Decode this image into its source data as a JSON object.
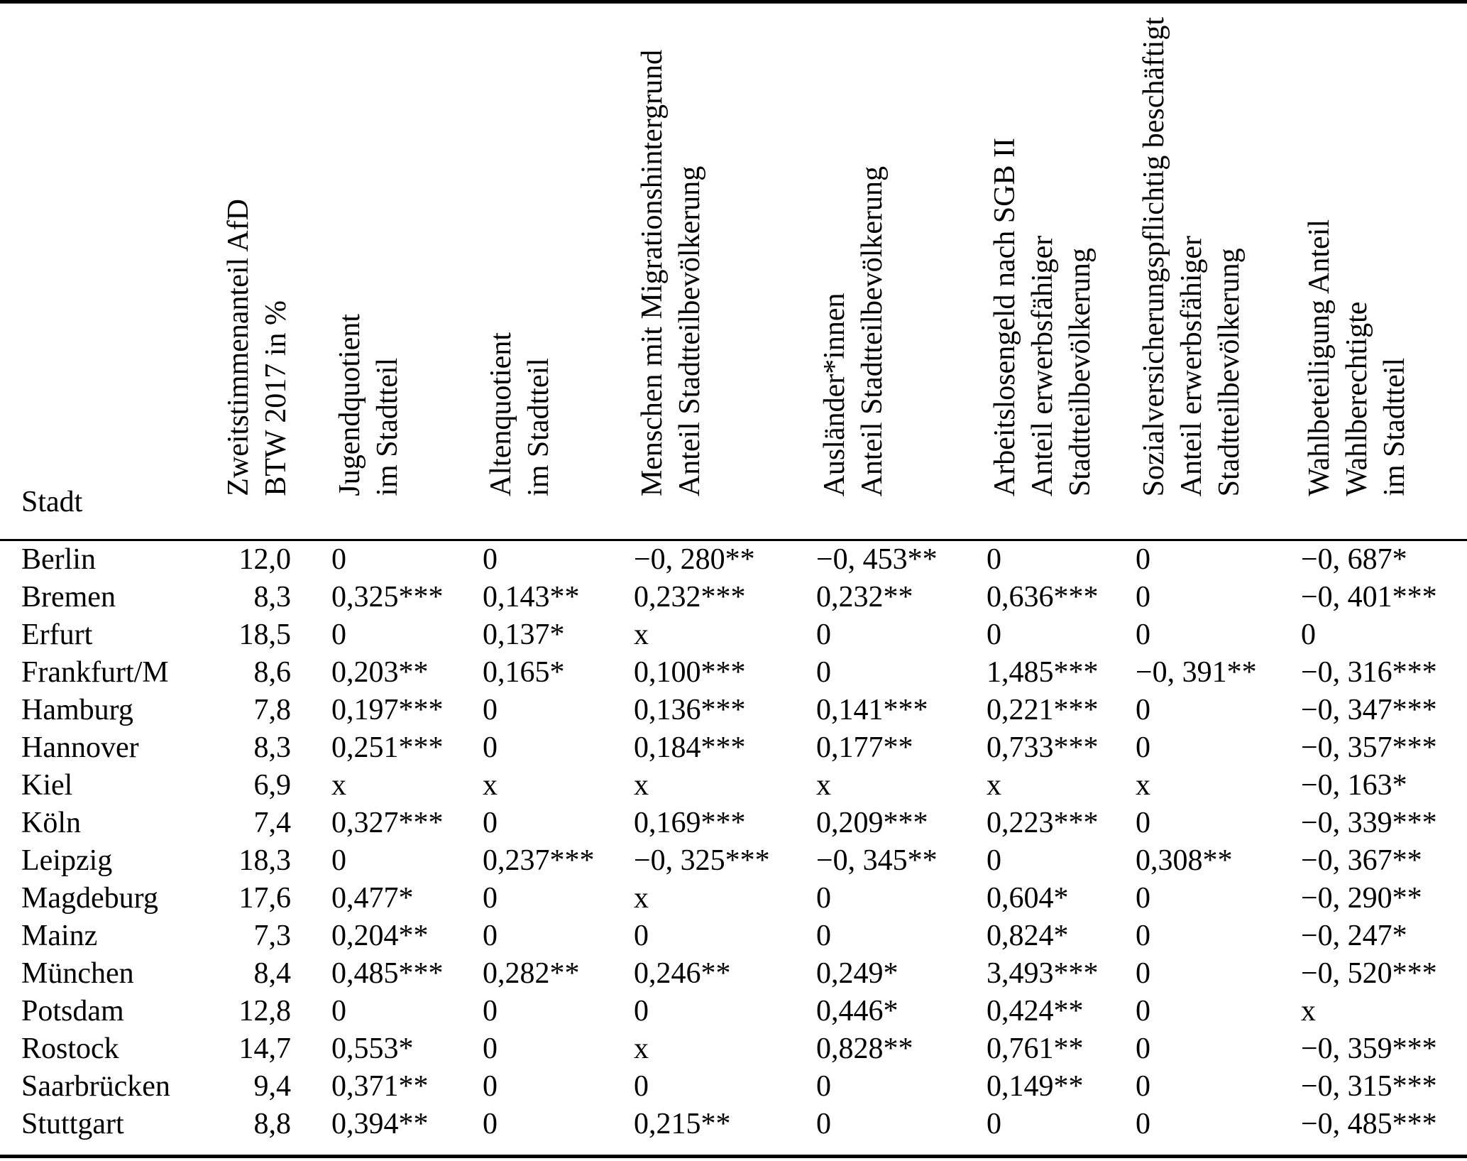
{
  "table": {
    "column_keys": [
      "stadt",
      "afd_zweitstimmen",
      "jugendquotient",
      "altenquotient",
      "migrationshintergrund",
      "auslaender",
      "sgb2",
      "sozialversicherung",
      "wahlbeteiligung"
    ],
    "columns": [
      {
        "label": "Stadt"
      },
      {
        "label": "Zweitstimmenanteil AfD\nBTW 2017 in %"
      },
      {
        "label": "Jugendquotient\nim Stadtteil"
      },
      {
        "label": "Altenquotient\nim Stadtteil"
      },
      {
        "label": "Menschen mit Migrationshintergrund\nAnteil Stadtteilbevölkerung"
      },
      {
        "label": "Ausländer*innen\nAnteil Stadtteilbevölkerung"
      },
      {
        "label": "Arbeitslosengeld nach SGB II\nAnteil erwerbsfähiger\nStadtteilbevölkerung"
      },
      {
        "label": "Sozialversicherungspflichtig beschäftigt\nAnteil erwerbsfähiger\nStadtteilbevölkerung"
      },
      {
        "label": "Wahlbeteiligung Anteil\nWahlberechtigte\nim Stadtteil"
      }
    ],
    "rows": [
      {
        "stadt": "Berlin",
        "values": [
          "12,0",
          "0",
          "0",
          "−0, 280**",
          "−0, 453**",
          "0",
          "0",
          "−0, 687*"
        ]
      },
      {
        "stadt": "Bremen",
        "values": [
          "8,3",
          "0,325***",
          "0,143**",
          "0,232***",
          "0,232**",
          "0,636***",
          "0",
          "−0, 401***"
        ]
      },
      {
        "stadt": "Erfurt",
        "values": [
          "18,5",
          "0",
          "0,137*",
          "x",
          "0",
          "0",
          "0",
          "0"
        ]
      },
      {
        "stadt": "Frankfurt/M",
        "values": [
          "8,6",
          "0,203**",
          "0,165*",
          "0,100***",
          "0",
          "1,485***",
          "−0, 391**",
          "−0, 316***"
        ]
      },
      {
        "stadt": "Hamburg",
        "values": [
          "7,8",
          "0,197***",
          "0",
          "0,136***",
          "0,141***",
          "0,221***",
          "0",
          "−0, 347***"
        ]
      },
      {
        "stadt": "Hannover",
        "values": [
          "8,3",
          "0,251***",
          "0",
          "0,184***",
          "0,177**",
          "0,733***",
          "0",
          "−0, 357***"
        ]
      },
      {
        "stadt": "Kiel",
        "values": [
          "6,9",
          "x",
          "x",
          "x",
          "x",
          "x",
          "x",
          "−0, 163*"
        ]
      },
      {
        "stadt": "Köln",
        "values": [
          "7,4",
          "0,327***",
          "0",
          "0,169***",
          "0,209***",
          "0,223***",
          "0",
          "−0, 339***"
        ]
      },
      {
        "stadt": "Leipzig",
        "values": [
          "18,3",
          "0",
          "0,237***",
          "−0, 325***",
          "−0, 345**",
          "0",
          "0,308**",
          "−0, 367**"
        ]
      },
      {
        "stadt": "Magdeburg",
        "values": [
          "17,6",
          "0,477*",
          "0",
          "x",
          "0",
          "0,604*",
          "0",
          "−0, 290**"
        ]
      },
      {
        "stadt": "Mainz",
        "values": [
          "7,3",
          "0,204**",
          "0",
          "0",
          "0",
          "0,824*",
          "0",
          "−0, 247*"
        ]
      },
      {
        "stadt": "München",
        "values": [
          "8,4",
          "0,485***",
          "0,282**",
          "0,246**",
          "0,249*",
          "3,493***",
          "0",
          "−0, 520***"
        ]
      },
      {
        "stadt": "Potsdam",
        "values": [
          "12,8",
          "0",
          "0",
          "0",
          "0,446*",
          "0,424**",
          "0",
          "x"
        ]
      },
      {
        "stadt": "Rostock",
        "values": [
          "14,7",
          "0,553*",
          "0",
          "x",
          "0,828**",
          "0,761**",
          "0",
          "−0, 359***"
        ]
      },
      {
        "stadt": "Saarbrücken",
        "values": [
          "9,4",
          "0,371**",
          "0",
          "0",
          "0",
          "0,149**",
          "0",
          "−0, 315***"
        ]
      },
      {
        "stadt": "Stuttgart",
        "values": [
          "8,8",
          "0,394**",
          "0",
          "0,215**",
          "0",
          "0",
          "0",
          "−0, 485***"
        ]
      }
    ]
  }
}
